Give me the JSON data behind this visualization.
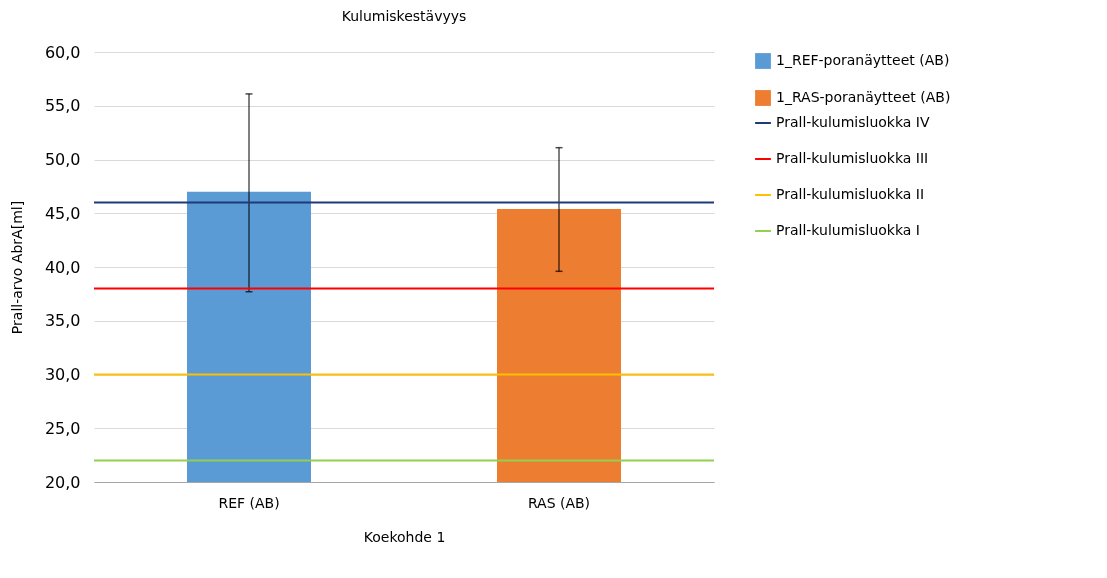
{
  "chart_data": {
    "type": "bar",
    "title": "Kulumiskestävyys",
    "ylabel": "Prall-arvo AbrA[ml]",
    "xlabel": "Koekohde 1",
    "categories": [
      "REF (AB)",
      "RAS (AB)"
    ],
    "series": [
      {
        "name": "1_REF-poranäytteet (AB)",
        "color": "#5b9bd5",
        "values": [
          47.0,
          null
        ],
        "errors": [
          [
            37.7,
            56.1
          ],
          null
        ]
      },
      {
        "name": "1_RAS-poranäytteet (AB)",
        "color": "#ed7d31",
        "values": [
          null,
          45.4
        ],
        "errors": [
          null,
          [
            39.6,
            51.1
          ]
        ]
      }
    ],
    "ref_lines": [
      {
        "axis": "y",
        "value": 46.0,
        "label": "Prall-kulumisluokka IV",
        "color": "#1f3a7a"
      },
      {
        "axis": "y",
        "value": 38.0,
        "label": "Prall-kulumisluokka III",
        "color": "#ff0000"
      },
      {
        "axis": "y",
        "value": 30.0,
        "label": "Prall-kulumisluokka II",
        "color": "#ffc000"
      },
      {
        "axis": "y",
        "value": 22.0,
        "label": "Prall-kulumisluokka I",
        "color": "#92d050"
      }
    ],
    "ylim": [
      20,
      60
    ],
    "yticks": [
      {
        "value": 20,
        "label": "20,0"
      },
      {
        "value": 25,
        "label": "25,0"
      },
      {
        "value": 30,
        "label": "30,0"
      },
      {
        "value": 35,
        "label": "35,0"
      },
      {
        "value": 40,
        "label": "40,0"
      },
      {
        "value": 45,
        "label": "45,0"
      },
      {
        "value": 50,
        "label": "50,0"
      },
      {
        "value": 55,
        "label": "55,0"
      },
      {
        "value": 60,
        "label": "60,0"
      }
    ],
    "grid": "y",
    "legend": "right"
  }
}
